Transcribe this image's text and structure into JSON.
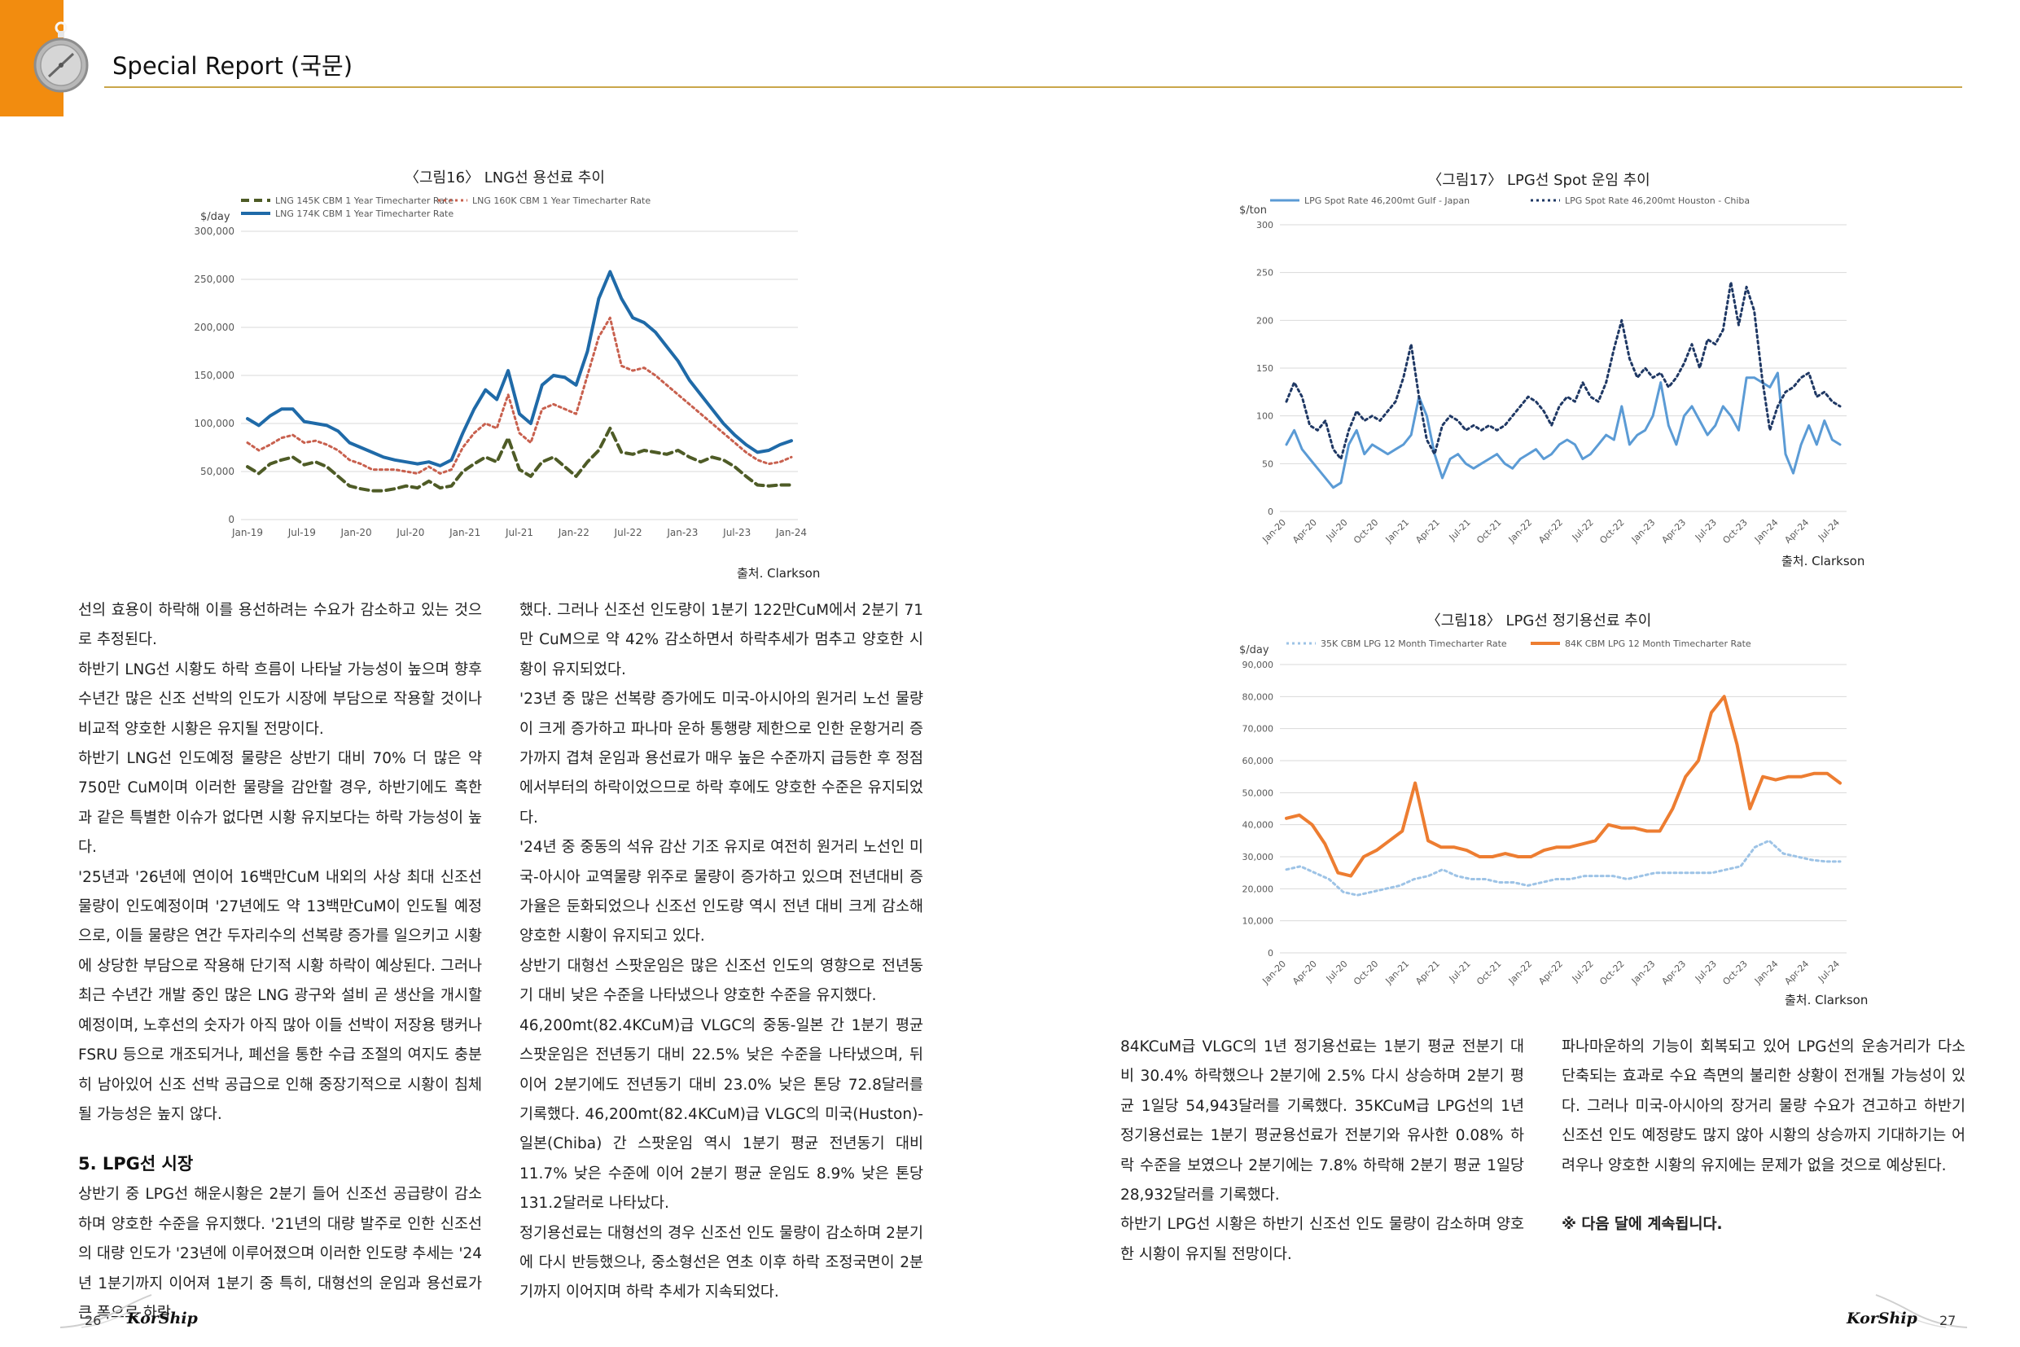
{
  "header": {
    "title": "Special Report (국문)"
  },
  "figures": {
    "fig16": {
      "title": "〈그림16〉 LNG선 용선료 추이",
      "source": "출처. Clarkson"
    },
    "fig17": {
      "title": "〈그림17〉 LPG선 Spot 운임 추이",
      "source": "출처. Clarkson"
    },
    "fig18": {
      "title": "〈그림18〉 LPG선 정기용선료 추이",
      "source": "출처. Clarkson"
    }
  },
  "chart_data": [
    {
      "id": "fig16",
      "type": "line",
      "ylabel": "$/day",
      "ylim": [
        0,
        300000
      ],
      "yticks": [
        "0",
        "50,000",
        "100,000",
        "150,000",
        "200,000",
        "250,000",
        "300,000"
      ],
      "xticks": [
        "Jan-19",
        "Jul-19",
        "Jan-20",
        "Jul-20",
        "Jan-21",
        "Jul-21",
        "Jan-22",
        "Jul-22",
        "Jan-23",
        "Jul-23",
        "Jan-24"
      ],
      "legend_position": "top",
      "grid": true,
      "series": [
        {
          "name": "LNG 145K CBM 1 Year Timecharter Rate",
          "color": "#4e5b26",
          "dash": "10,6",
          "width": 4,
          "values": [
            55000,
            48000,
            58000,
            62000,
            65000,
            57000,
            60000,
            55000,
            45000,
            35000,
            32000,
            30000,
            30000,
            32000,
            35000,
            33000,
            40000,
            33000,
            35000,
            50000,
            58000,
            65000,
            60000,
            85000,
            52000,
            45000,
            60000,
            65000,
            55000,
            45000,
            60000,
            72000,
            95000,
            70000,
            68000,
            72000,
            70000,
            68000,
            72000,
            65000,
            60000,
            65000,
            62000,
            55000,
            45000,
            36000,
            35000,
            36000,
            36000
          ]
        },
        {
          "name": "LNG 160K CBM 1 Year Timecharter Rate",
          "color": "#c8604e",
          "dash": "3,4",
          "width": 3,
          "values": [
            80000,
            72000,
            78000,
            85000,
            88000,
            80000,
            82000,
            78000,
            72000,
            62000,
            58000,
            52000,
            52000,
            52000,
            50000,
            48000,
            55000,
            48000,
            52000,
            75000,
            90000,
            100000,
            95000,
            130000,
            90000,
            80000,
            115000,
            120000,
            115000,
            110000,
            150000,
            190000,
            210000,
            160000,
            155000,
            158000,
            150000,
            140000,
            130000,
            120000,
            110000,
            100000,
            90000,
            80000,
            70000,
            62000,
            58000,
            60000,
            65000
          ]
        },
        {
          "name": "LNG 174K CBM 1 Year Timecharter Rate",
          "color": "#1f6aa8",
          "dash": "",
          "width": 4,
          "values": [
            105000,
            98000,
            108000,
            115000,
            115000,
            102000,
            100000,
            98000,
            92000,
            80000,
            75000,
            70000,
            65000,
            62000,
            60000,
            58000,
            60000,
            56000,
            62000,
            90000,
            115000,
            135000,
            125000,
            155000,
            110000,
            100000,
            140000,
            150000,
            148000,
            140000,
            175000,
            230000,
            258000,
            230000,
            210000,
            205000,
            195000,
            180000,
            165000,
            145000,
            130000,
            115000,
            100000,
            88000,
            78000,
            70000,
            72000,
            78000,
            82000
          ]
        }
      ]
    },
    {
      "id": "fig17",
      "type": "line",
      "ylabel": "$/ton",
      "ylim": [
        0,
        300
      ],
      "yticks": [
        "0",
        "50",
        "100",
        "150",
        "200",
        "250",
        "300"
      ],
      "xticks": [
        "Jan-20",
        "Apr-20",
        "Jul-20",
        "Oct-20",
        "Jan-21",
        "Apr-21",
        "Jul-21",
        "Oct-21",
        "Jan-22",
        "Apr-22",
        "Jul-22",
        "Oct-22",
        "Jan-23",
        "Apr-23",
        "Jul-23",
        "Oct-23",
        "Jan-24",
        "Apr-24",
        "Jul-24"
      ],
      "legend_position": "top",
      "grid": true,
      "series": [
        {
          "name": "LPG Spot Rate 46,200mt Gulf - Japan",
          "color": "#5b9bd5",
          "dash": "",
          "width": 3,
          "values": [
            70,
            85,
            65,
            55,
            45,
            35,
            25,
            30,
            70,
            85,
            60,
            70,
            65,
            60,
            65,
            70,
            80,
            120,
            100,
            60,
            35,
            55,
            60,
            50,
            45,
            50,
            55,
            60,
            50,
            45,
            55,
            60,
            65,
            55,
            60,
            70,
            75,
            70,
            55,
            60,
            70,
            80,
            75,
            110,
            70,
            80,
            85,
            100,
            135,
            90,
            70,
            100,
            110,
            95,
            80,
            90,
            110,
            100,
            85,
            140,
            140,
            135,
            130,
            145,
            60,
            40,
            70,
            90,
            70,
            95,
            75,
            70
          ]
        },
        {
          "name": "LPG Spot Rate 46,200mt Houston - Chiba",
          "color": "#1f3864",
          "dash": "3,4",
          "width": 3,
          "values": [
            115,
            135,
            120,
            90,
            85,
            95,
            65,
            55,
            85,
            105,
            95,
            100,
            95,
            105,
            115,
            140,
            175,
            120,
            75,
            60,
            90,
            100,
            95,
            85,
            90,
            85,
            90,
            85,
            90,
            100,
            110,
            120,
            115,
            105,
            90,
            110,
            120,
            115,
            135,
            120,
            115,
            135,
            170,
            200,
            160,
            140,
            150,
            140,
            145,
            130,
            140,
            155,
            175,
            150,
            180,
            175,
            190,
            240,
            195,
            235,
            210,
            140,
            85,
            110,
            125,
            130,
            140,
            145,
            120,
            125,
            115,
            110
          ]
        }
      ]
    },
    {
      "id": "fig18",
      "type": "line",
      "ylabel": "$/day",
      "ylim": [
        0,
        90000
      ],
      "yticks": [
        "0",
        "10,000",
        "20,000",
        "30,000",
        "40,000",
        "50,000",
        "60,000",
        "70,000",
        "80,000",
        "90,000"
      ],
      "xticks": [
        "Jan-20",
        "Apr-20",
        "Jul-20",
        "Oct-20",
        "Jan-21",
        "Apr-21",
        "Jul-21",
        "Oct-21",
        "Jan-22",
        "Apr-22",
        "Jul-22",
        "Oct-22",
        "Jan-23",
        "Apr-23",
        "Jul-23",
        "Oct-23",
        "Jan-24",
        "Apr-24",
        "Jul-24"
      ],
      "legend_position": "top",
      "grid": true,
      "series": [
        {
          "name": "35K CBM LPG 12 Month Timecharter Rate",
          "color": "#9dc3e6",
          "dash": "3,4",
          "width": 3,
          "values": [
            26000,
            27000,
            25000,
            23000,
            19000,
            18000,
            19000,
            20000,
            21000,
            23000,
            24000,
            26000,
            24000,
            23000,
            23000,
            22000,
            22000,
            21000,
            22000,
            23000,
            23000,
            24000,
            24000,
            24000,
            23000,
            24000,
            25000,
            25000,
            25000,
            25000,
            25000,
            26000,
            27000,
            33000,
            35000,
            31000,
            30000,
            29000,
            28500,
            28500
          ]
        },
        {
          "name": "84K CBM LPG 12 Month Timecharter Rate",
          "color": "#ed7d31",
          "dash": "",
          "width": 4,
          "values": [
            42000,
            43000,
            40000,
            34000,
            25000,
            24000,
            30000,
            32000,
            35000,
            38000,
            53000,
            35000,
            33000,
            33000,
            32000,
            30000,
            30000,
            31000,
            30000,
            30000,
            32000,
            33000,
            33000,
            34000,
            35000,
            40000,
            39000,
            39000,
            38000,
            38000,
            45000,
            55000,
            60000,
            75000,
            80000,
            65000,
            45000,
            55000,
            54000,
            55000,
            55000,
            56000,
            56000,
            53000
          ]
        }
      ]
    }
  ],
  "left_page": {
    "col1": [
      "선의 효용이 하락해 이를 용선하려는 수요가 감소하고 있는 것으로 추정된다.",
      "하반기 LNG선 시황도 하락 흐름이 나타날 가능성이 높으며 향후 수년간 많은 신조 선박의 인도가 시장에 부담으로 작용할 것이나 비교적 양호한 시황은 유지될 전망이다.",
      "하반기 LNG선 인도예정 물량은 상반기 대비 70% 더 많은 약 750만 CuM이며 이러한 물량을 감안할 경우, 하반기에도 혹한과 같은 특별한 이슈가 없다면 시황 유지보다는 하락 가능성이 높다.",
      "'25년과 '26년에 연이어 16백만CuM 내외의 사상 최대 신조선 물량이 인도예정이며 '27년에도 약 13백만CuM이 인도될 예정으로, 이들 물량은 연간 두자리수의 선복량 증가를 일으키고 시황에 상당한 부담으로 작용해 단기적 시황 하락이 예상된다. 그러나 최근 수년간 개발 중인 많은 LNG 광구와 설비 곧 생산을 개시할 예정이며, 노후선의 숫자가 아직 많아 이들 선박이 저장용 탱커나 FSRU 등으로 개조되거나, 폐선을 통한 수급 조절의 여지도 충분히 남아있어 신조 선박 공급으로 인해 중장기적으로 시황이 침체될 가능성은 높지 않다."
    ],
    "section_heading": "5. LPG선 시장",
    "col1_after": [
      "상반기 중 LPG선 해운시황은 2분기 들어 신조선 공급량이 감소하며 양호한 수준을 유지했다. '21년의 대량 발주로 인한 신조선의 대량 인도가 '23년에 이루어졌으며 이러한 인도량 추세는 '24년 1분기까지 이어져 1분기 중 특히, 대형선의 운임과 용선료가 큰 폭으로 하락"
    ],
    "col2": [
      "했다. 그러나 신조선 인도량이 1분기 122만CuM에서 2분기 71만 CuM으로 약 42% 감소하면서 하락추세가 멈추고 양호한 시황이 유지되었다.",
      "'23년 중 많은 선복량 증가에도 미국-아시아의 원거리 노선 물량이 크게 증가하고 파나마 운하 통행량 제한으로 인한 운항거리 증가까지 겹쳐 운임과 용선료가 매우 높은 수준까지 급등한 후 정점에서부터의 하락이었으므로 하락 후에도 양호한 수준은 유지되었다.",
      "'24년 중 중동의 석유 감산 기조 유지로 여전히 원거리 노선인 미국-아시아 교역물량 위주로 물량이 증가하고 있으며 전년대비 증가율은 둔화되었으나 신조선 인도량 역시 전년 대비 크게 감소해 양호한 시황이 유지되고 있다.",
      "상반기 대형선 스팟운임은 많은 신조선 인도의 영향으로 전년동기 대비 낮은 수준을 나타냈으나 양호한 수준을 유지했다.",
      "46,200mt(82.4KCuM)급 VLGC의 중동-일본 간 1분기 평균 스팟운임은 전년동기 대비 22.5% 낮은 수준을 나타냈으며, 뒤이어 2분기에도 전년동기 대비 23.0% 낮은 톤당 72.8달러를 기록했다. 46,200mt(82.4KCuM)급 VLGC의 미국(Huston)-일본(Chiba) 간 스팟운임 역시 1분기 평균 전년동기 대비 11.7% 낮은 수준에 이어 2분기 평균 운임도 8.9% 낮은 톤당 131.2달러로 나타났다.",
      "정기용선료는 대형선의 경우 신조선 인도 물량이 감소하며 2분기에 다시 반등했으나, 중소형선은 연초 이후 하락 조정국면이 2분기까지 이어지며 하락 추세가 지속되었다."
    ]
  },
  "right_page": {
    "col3": [
      "84KCuM급 VLGC의 1년 정기용선료는 1분기 평균 전분기 대비 30.4% 하락했으나 2분기에 2.5% 다시 상승하며 2분기 평균 1일당 54,943달러를 기록했다. 35KCuM급 LPG선의 1년 정기용선료는 1분기 평균용선료가 전분기와 유사한 0.08% 하락 수준을 보였으나 2분기에는 7.8% 하락해 2분기 평균 1일당 28,932달러를 기록했다.",
      "하반기 LPG선 시황은 하반기 신조선 인도 물량이 감소하며 양호한 시황이 유지될 전망이다."
    ],
    "col4": [
      "파나마운하의 기능이 회복되고 있어 LPG선의 운송거리가 다소 단축되는 효과로 수요 측면의 불리한 상황이 전개될 가능성이 있다. 그러나 미국-아시아의 장거리 물량 수요가 견고하고 하반기 신조선 인도 예정량도 많지 않아 시황의 상승까지 기대하기는 어려우나 양호한 시황의 유지에는 문제가 없을 것으로 예상된다."
    ],
    "continued": "※ 다음 달에 계속됩니다."
  },
  "footer": {
    "left_page_number": "26",
    "right_page_number": "27",
    "logo_text": "KorShip"
  }
}
